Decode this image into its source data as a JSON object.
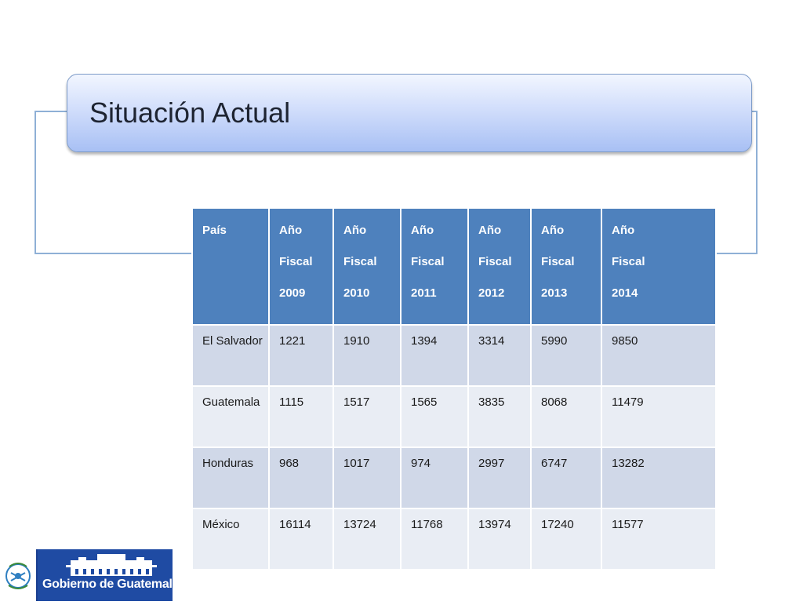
{
  "slide": {
    "title": "Situación Actual"
  },
  "table": {
    "headers": [
      [
        "País"
      ],
      [
        "Año",
        "Fiscal",
        "2009"
      ],
      [
        "Año",
        "Fiscal",
        "2010"
      ],
      [
        "Año",
        "Fiscal",
        "2011"
      ],
      [
        "Año",
        "Fiscal",
        "2012"
      ],
      [
        "Año",
        "Fiscal",
        "2013"
      ],
      [
        "Año",
        "Fiscal",
        "2014"
      ]
    ],
    "rows": [
      [
        "El Salvador",
        "1221",
        "1910",
        "1394",
        "3314",
        "5990",
        "9850"
      ],
      [
        "Guatemala",
        "1115",
        "1517",
        "1565",
        "3835",
        "8068",
        "11479"
      ],
      [
        "Honduras",
        "968",
        "1017",
        "974",
        "2997",
        "6747",
        "13282"
      ],
      [
        "México",
        "16114",
        "13724",
        "11768",
        "13974",
        "17240",
        "11577"
      ]
    ]
  },
  "logo": {
    "text": "Gobierno de Guatemala",
    "colors": {
      "band": "#1f4ba3",
      "emblem": "#2f7fc1"
    }
  },
  "colors": {
    "header": "#4e81bd",
    "row_odd": "#d0d8e8",
    "row_even": "#e9edf4",
    "frame": "#8fb0d6"
  }
}
